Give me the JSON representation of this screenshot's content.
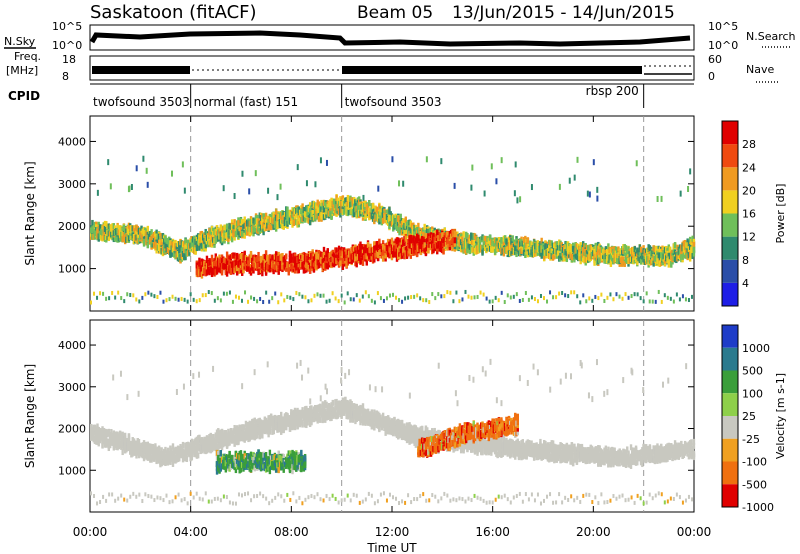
{
  "header": {
    "station": "Saskatoon (fitACF)",
    "beam": "Beam 05",
    "date_range": "13/Jun/2015 - 14/Jun/2015"
  },
  "strip_labels": {
    "nsky": "N.Sky",
    "nsky_ticks": [
      "10^5",
      "10^0"
    ],
    "nsearch": "N.Search",
    "nsearch_ticks": [
      "10^5",
      "10^0"
    ],
    "freq_line1": "Freq.",
    "freq_line2": "[MHz]",
    "freq_ticks": [
      "18",
      "8"
    ],
    "nave": "Nave",
    "nave_ticks": [
      "60",
      "0"
    ],
    "cpid": "CPID"
  },
  "cpid_segments": [
    {
      "label": "twofsound 3503",
      "start_hour": 0
    },
    {
      "label": "normal (fast) 151",
      "start_hour": 4
    },
    {
      "label": "twofsound 3503",
      "start_hour": 10
    },
    {
      "label": "rbsp 200",
      "start_hour": 22
    }
  ],
  "chart_data": [
    {
      "type": "heatmap",
      "panel": "power",
      "xlabel": "",
      "ylabel": "Slant Range [km]",
      "x_range_hours": [
        0,
        24
      ],
      "ylim": [
        0,
        4600
      ],
      "y_ticks": [
        1000,
        2000,
        3000,
        4000
      ],
      "colorbar": {
        "label": "Power [dB]",
        "ticks": [
          "4",
          "8",
          "12",
          "16",
          "20",
          "24",
          "28"
        ],
        "colors": [
          "#1e1ee6",
          "#2a4ea8",
          "#2f8a6e",
          "#6fbf5a",
          "#f0d020",
          "#f09a20",
          "#f04a10",
          "#e00000"
        ]
      },
      "bands": [
        {
          "label": "main echo band",
          "points": [
            [
              0.0,
              1900
            ],
            [
              2.0,
              1800
            ],
            [
              3.5,
              1400
            ],
            [
              5.0,
              1800
            ],
            [
              7.0,
              2100
            ],
            [
              9.0,
              2350
            ],
            [
              10.0,
              2500
            ],
            [
              11.5,
              2300
            ],
            [
              13.0,
              1800
            ],
            [
              15.0,
              1600
            ],
            [
              17.0,
              1500
            ],
            [
              19.0,
              1400
            ],
            [
              21.0,
              1300
            ],
            [
              23.0,
              1300
            ],
            [
              24.0,
              1500
            ]
          ],
          "dominant_db": 16
        },
        {
          "label": "strong low-range echoes",
          "points": [
            [
              4.2,
              950
            ],
            [
              5.0,
              1100
            ],
            [
              8.5,
              1150
            ],
            [
              12.5,
              1500
            ],
            [
              14.5,
              1700
            ]
          ],
          "dominant_db": 28
        }
      ]
    },
    {
      "type": "heatmap",
      "panel": "velocity",
      "xlabel": "Time UT",
      "ylabel": "Slant Range [km]",
      "x_range_hours": [
        0,
        24
      ],
      "x_ticks": [
        "00:00",
        "04:00",
        "08:00",
        "12:00",
        "16:00",
        "20:00",
        "00:00"
      ],
      "ylim": [
        0,
        4600
      ],
      "y_ticks": [
        1000,
        2000,
        3000,
        4000
      ],
      "colorbar": {
        "label": "Velocity [m s-1]",
        "ticks": [
          "1000",
          "500",
          "100",
          "25",
          "-25",
          "-100",
          "-500",
          "-1000"
        ],
        "colors": [
          "#1e3cc8",
          "#2a7a8e",
          "#3a9e3a",
          "#8ed04a",
          "#c8c8c0",
          "#f0a020",
          "#f07010",
          "#e00000"
        ]
      },
      "bands": [
        {
          "label": "ground scatter",
          "points": [
            [
              0.0,
              1900
            ],
            [
              3.0,
              1300
            ],
            [
              6.0,
              1900
            ],
            [
              10.0,
              2500
            ],
            [
              13.0,
              1800
            ],
            [
              17.0,
              1500
            ],
            [
              21.0,
              1300
            ],
            [
              24.0,
              1500
            ]
          ],
          "dominant_ms": 0
        },
        {
          "label": "negative velocity echoes",
          "points": [
            [
              13.0,
              1500
            ],
            [
              15.0,
              1900
            ],
            [
              17.0,
              2100
            ]
          ],
          "dominant_ms": -300
        },
        {
          "label": "positive velocity echoes",
          "points": [
            [
              5.0,
              1200
            ],
            [
              7.0,
              1200
            ],
            [
              8.5,
              1200
            ]
          ],
          "dominant_ms": 300
        }
      ]
    }
  ]
}
